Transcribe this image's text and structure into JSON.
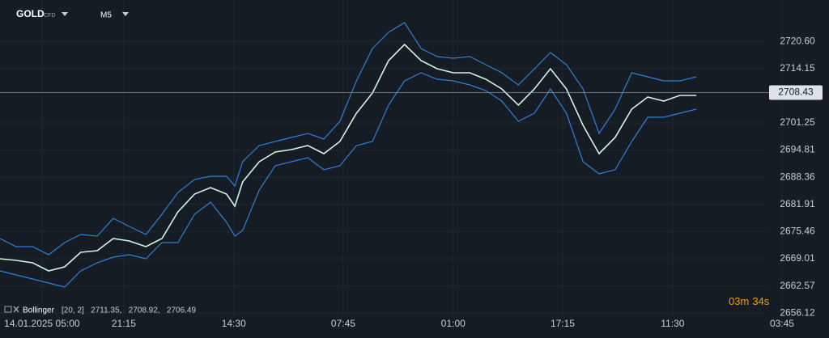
{
  "header": {
    "symbol": "GOLD",
    "market": "CFD",
    "timeframe": "M5"
  },
  "chart_data": {
    "type": "line",
    "x": [
      0,
      2.9,
      5.9,
      8.8,
      11.7,
      14.6,
      17.6,
      20.5,
      23.4,
      26.4,
      29.3,
      32.2,
      35.2,
      38.1,
      41.0,
      42.5,
      43.9,
      46.9,
      49.8,
      52.7,
      55.7,
      58.6,
      61.5,
      64.5,
      67.4,
      70.3,
      73.2,
      76.2,
      79.1,
      82.0,
      85.0,
      87.9,
      90.8,
      93.8,
      96.7,
      99.6,
      102.5,
      105.5,
      108.4,
      111.3,
      114.3,
      117.2,
      120.1,
      123.0,
      126.0
    ],
    "series": [
      {
        "color": "#d4f5e4",
        "values": [
          2669.01,
          2668.63,
          2668.05,
          2666.14,
          2667.1,
          2670.55,
          2670.93,
          2673.81,
          2673.23,
          2671.89,
          2673.81,
          2680.14,
          2684.36,
          2685.89,
          2684.36,
          2681.48,
          2687.24,
          2692.03,
          2694.34,
          2694.91,
          2695.87,
          2693.95,
          2696.83,
          2703.54,
          2708.34,
          2716.01,
          2719.85,
          2716.01,
          2714.09,
          2713.13,
          2713.13,
          2711.6,
          2709.3,
          2705.46,
          2709.3,
          2714.09,
          2709.3,
          2700.67,
          2693.95,
          2697.79,
          2704.5,
          2707.38,
          2706.42,
          2707.76,
          2707.76
        ]
      },
      {
        "color": "#2f7fd8",
        "values": [
          2673.81,
          2671.89,
          2671.89,
          2669.97,
          2672.85,
          2674.77,
          2674.39,
          2678.6,
          2676.69,
          2674.77,
          2679.56,
          2684.74,
          2687.81,
          2688.58,
          2688.58,
          2686.28,
          2692.03,
          2695.87,
          2696.83,
          2697.79,
          2698.75,
          2697.41,
          2701.63,
          2711.22,
          2718.89,
          2722.73,
          2725.03,
          2718.89,
          2716.97,
          2716.59,
          2716.97,
          2715.05,
          2713.13,
          2710.26,
          2714.09,
          2717.93,
          2715.05,
          2709.3,
          2698.75,
          2704.5,
          2713.13,
          2712.18,
          2711.22,
          2711.22,
          2712.18
        ]
      },
      {
        "color": "#2f7fd8",
        "values": [
          2666.14,
          2665.18,
          2664.22,
          2663.26,
          2662.3,
          2666.14,
          2668.05,
          2669.4,
          2669.97,
          2669.01,
          2672.85,
          2672.85,
          2679.56,
          2682.44,
          2677.65,
          2674.39,
          2675.73,
          2685.32,
          2691.07,
          2692.03,
          2692.99,
          2690.12,
          2691.07,
          2695.87,
          2696.83,
          2705.46,
          2711.22,
          2713.13,
          2711.6,
          2711.22,
          2710.26,
          2708.92,
          2706.42,
          2701.63,
          2703.54,
          2709.3,
          2703.54,
          2692.03,
          2689.16,
          2690.12,
          2696.83,
          2702.58,
          2702.58,
          2703.54,
          2704.5
        ]
      }
    ],
    "xlim": [
      0,
      150
    ],
    "ylim": [
      2655.2,
      2730.4
    ],
    "xticks": [
      {
        "value": 7.6,
        "label": "14.01.2025 05:00"
      },
      {
        "value": 22.4,
        "label": "21:15"
      },
      {
        "value": 42.3,
        "label": "14:30"
      },
      {
        "value": 62.1,
        "label": "07:45"
      },
      {
        "value": 82.0,
        "label": "01:00"
      },
      {
        "value": 101.8,
        "label": "17:15"
      },
      {
        "value": 121.7,
        "label": "11:30"
      },
      {
        "value": 141.5,
        "label": "03:45"
      }
    ],
    "yticks": [
      {
        "value": 2720.6,
        "label": "2720.60"
      },
      2714.15,
      2701.25,
      2694.81,
      2688.36,
      2681.91,
      2675.46,
      2669.01,
      2662.57,
      2656.12
    ],
    "grid": true,
    "current_price": 2708.43,
    "indicator": {
      "name": "Bollinger",
      "legend": "[20, 2]   2711.35,   2708.92,   2706.49"
    },
    "countdown": {
      "minutes": "03",
      "minutes_unit": "m",
      "seconds": "34",
      "seconds_unit": "s"
    }
  }
}
